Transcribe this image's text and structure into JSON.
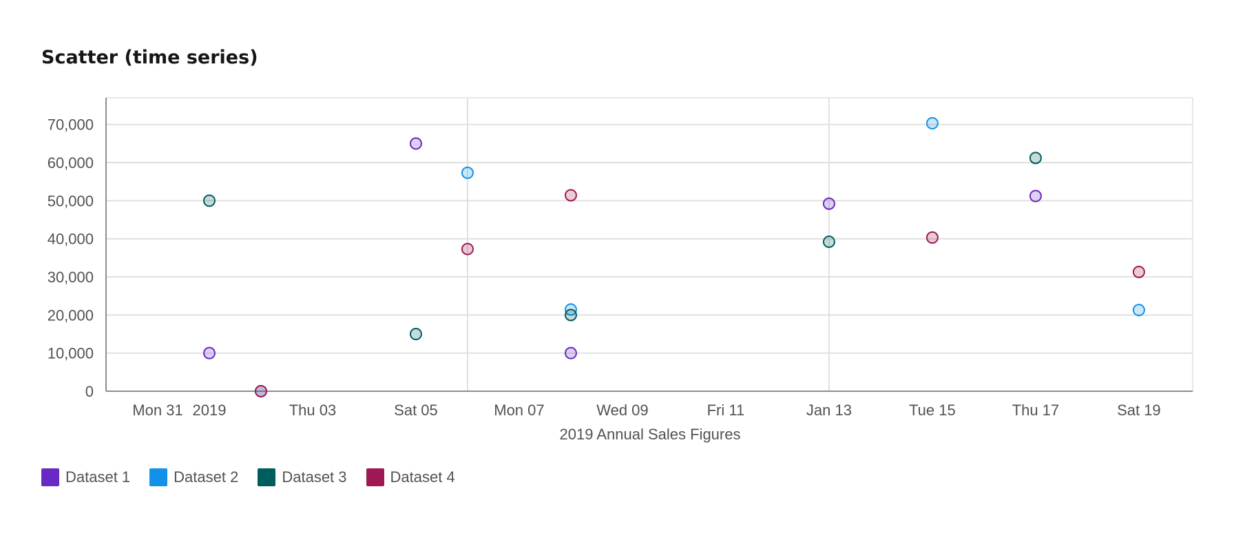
{
  "chart_data": {
    "type": "scatter",
    "title": "Scatter (time series)",
    "xlabel": "2019 Annual Sales Figures",
    "ylabel": "",
    "x_tick_labels": [
      "Mon 31",
      "2019",
      "Thu 03",
      "Sat 05",
      "Mon 07",
      "Wed 09",
      "Fri 11",
      "Jan 13",
      "Tue 15",
      "Thu 17",
      "Sat 19"
    ],
    "x_tick_dates": [
      "2018-12-31",
      "2019-01-01",
      "2019-01-03",
      "2019-01-05",
      "2019-01-07",
      "2019-01-09",
      "2019-01-11",
      "2019-01-13",
      "2019-01-15",
      "2019-01-17",
      "2019-01-19"
    ],
    "xlim": [
      "2018-12-30T00:00",
      "2019-01-20T01:00"
    ],
    "vertical_grid_dates": [
      "2019-01-06",
      "2019-01-13"
    ],
    "y_ticks": [
      0,
      10000,
      20000,
      30000,
      40000,
      50000,
      60000,
      70000
    ],
    "y_tick_labels": [
      "0",
      "10,000",
      "20,000",
      "30,000",
      "40,000",
      "50,000",
      "60,000",
      "70,000"
    ],
    "ylim": [
      0,
      77000
    ],
    "grid": true,
    "legend_position": "bottom-left",
    "series": [
      {
        "name": "Dataset 1",
        "color": "#6929c4",
        "points": [
          {
            "x": "2019-01-01",
            "y": 10000
          },
          {
            "x": "2019-01-05",
            "y": 65000
          },
          {
            "x": "2019-01-08",
            "y": 10000
          },
          {
            "x": "2019-01-13",
            "y": 49213
          },
          {
            "x": "2019-01-17",
            "y": 51213
          }
        ]
      },
      {
        "name": "Dataset 2",
        "color": "#1192e8",
        "points": [
          {
            "x": "2019-01-02",
            "y": 0
          },
          {
            "x": "2019-01-06",
            "y": 57312
          },
          {
            "x": "2019-01-08",
            "y": 21432
          },
          {
            "x": "2019-01-15",
            "y": 70323
          },
          {
            "x": "2019-01-19",
            "y": 21300
          }
        ]
      },
      {
        "name": "Dataset 3",
        "color": "#005d5d",
        "points": [
          {
            "x": "2019-01-01",
            "y": 50000
          },
          {
            "x": "2019-01-05",
            "y": 15000
          },
          {
            "x": "2019-01-08",
            "y": 20000
          },
          {
            "x": "2019-01-13",
            "y": 39213
          },
          {
            "x": "2019-01-17",
            "y": 61213
          }
        ]
      },
      {
        "name": "Dataset 4",
        "color": "#9f1853",
        "points": [
          {
            "x": "2019-01-02",
            "y": 0
          },
          {
            "x": "2019-01-06",
            "y": 37312
          },
          {
            "x": "2019-01-08",
            "y": 51432
          },
          {
            "x": "2019-01-15",
            "y": 40323
          },
          {
            "x": "2019-01-19",
            "y": 31300
          }
        ]
      }
    ]
  }
}
